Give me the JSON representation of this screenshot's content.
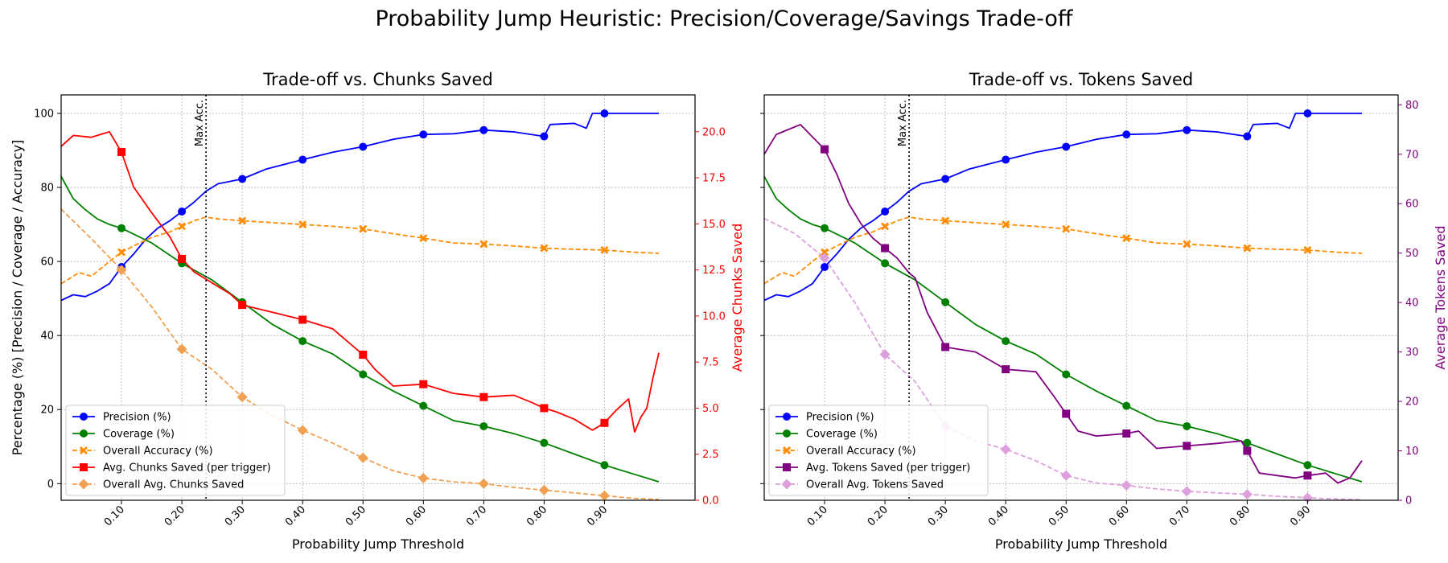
{
  "suptitle": "Probability Jump Heuristic: Precision/Coverage/Savings Trade-off",
  "colors": {
    "precision": "#0000ff",
    "coverage": "#008000",
    "accuracy": "#ff8c00",
    "chunks_saved": "#ff0000",
    "overall_chunks": "#f0a050",
    "tokens_saved": "#800080",
    "overall_tokens": "#dda0dd"
  },
  "chart_data": [
    {
      "type": "line",
      "title": "Trade-off vs. Chunks Saved",
      "xlabel": "Probability Jump Threshold",
      "ylabel": "Percentage (%) [Precision / Coverage / Accuracy]",
      "y2label": "Average Chunks Saved",
      "xlim": [
        0.0,
        1.05
      ],
      "ylim": [
        -4.5,
        105
      ],
      "y2lim": [
        0,
        22
      ],
      "xticks": [
        "0.10",
        "0.20",
        "0.30",
        "0.40",
        "0.50",
        "0.60",
        "0.70",
        "0.80",
        "0.90"
      ],
      "yticks": [
        "0",
        "20",
        "40",
        "60",
        "80",
        "100"
      ],
      "y2ticks": [
        "0.0",
        "2.5",
        "5.0",
        "7.5",
        "10.0",
        "12.5",
        "15.0",
        "17.5",
        "20.0"
      ],
      "grid": true,
      "legend_position": "lower-left",
      "vline": {
        "x": 0.24,
        "label": "Max Acc."
      },
      "series": [
        {
          "name": "Precision (%)",
          "axis": "left",
          "style": "solid",
          "marker": "circle",
          "color": "#0000ff",
          "x": [
            0.0,
            0.02,
            0.04,
            0.06,
            0.08,
            0.1,
            0.12,
            0.14,
            0.16,
            0.18,
            0.2,
            0.22,
            0.24,
            0.26,
            0.3,
            0.34,
            0.4,
            0.45,
            0.5,
            0.55,
            0.6,
            0.65,
            0.7,
            0.75,
            0.8,
            0.81,
            0.85,
            0.87,
            0.88,
            0.9,
            0.95,
            0.99
          ],
          "y": [
            49.5,
            51,
            50.5,
            52,
            54,
            58.5,
            62,
            66,
            69,
            71,
            73.5,
            76,
            79,
            81,
            82.3,
            85,
            87.5,
            89.5,
            91,
            93,
            94.3,
            94.5,
            95.5,
            95,
            93.8,
            97,
            97.3,
            96,
            100,
            100,
            100,
            100
          ]
        },
        {
          "name": "Coverage (%)",
          "axis": "left",
          "style": "solid",
          "marker": "circle",
          "color": "#008000",
          "x": [
            0.0,
            0.02,
            0.04,
            0.06,
            0.08,
            0.1,
            0.15,
            0.2,
            0.25,
            0.3,
            0.35,
            0.4,
            0.45,
            0.5,
            0.55,
            0.6,
            0.65,
            0.7,
            0.75,
            0.8,
            0.85,
            0.9,
            0.95,
            0.99
          ],
          "y": [
            83,
            77,
            74,
            71.5,
            70,
            69,
            65,
            59.5,
            55,
            49,
            43,
            38.5,
            35,
            29.5,
            25,
            21,
            17,
            15.5,
            13.5,
            11,
            8,
            5,
            2.5,
            0.5
          ]
        },
        {
          "name": "Overall Accuracy (%)",
          "axis": "left",
          "style": "dashed",
          "marker": "x",
          "color": "#ff8c00",
          "x": [
            0.0,
            0.03,
            0.05,
            0.08,
            0.1,
            0.13,
            0.15,
            0.18,
            0.2,
            0.22,
            0.24,
            0.26,
            0.3,
            0.35,
            0.4,
            0.45,
            0.5,
            0.55,
            0.6,
            0.65,
            0.7,
            0.75,
            0.8,
            0.85,
            0.9,
            0.95,
            0.99
          ],
          "y": [
            54,
            57,
            56,
            60,
            62.5,
            65,
            66.5,
            68,
            69.5,
            71,
            72,
            71.5,
            71,
            70.5,
            70,
            69.5,
            68.8,
            67.5,
            66.3,
            65,
            64.7,
            64.2,
            63.6,
            63.3,
            63.1,
            62.5,
            62.2
          ]
        },
        {
          "name": "Avg. Chunks Saved (per trigger)",
          "axis": "right",
          "style": "solid",
          "marker": "square",
          "color": "#ff0000",
          "x": [
            0.0,
            0.02,
            0.05,
            0.08,
            0.1,
            0.12,
            0.15,
            0.18,
            0.2,
            0.22,
            0.25,
            0.28,
            0.3,
            0.35,
            0.4,
            0.45,
            0.5,
            0.52,
            0.55,
            0.6,
            0.65,
            0.7,
            0.75,
            0.78,
            0.8,
            0.82,
            0.85,
            0.88,
            0.9,
            0.92,
            0.94,
            0.95,
            0.96,
            0.97,
            0.98,
            0.99
          ],
          "y": [
            19.2,
            19.8,
            19.7,
            20.0,
            18.9,
            17.0,
            15.6,
            14.3,
            13.1,
            12.4,
            11.8,
            11.2,
            10.6,
            10.2,
            9.8,
            9.3,
            7.9,
            7.1,
            6.2,
            6.3,
            5.8,
            5.6,
            5.7,
            5.3,
            5.0,
            4.8,
            4.4,
            3.8,
            4.2,
            4.9,
            5.5,
            3.7,
            4.5,
            5.0,
            6.6,
            8.0
          ]
        },
        {
          "name": "Overall Avg. Chunks Saved",
          "axis": "right",
          "style": "dashed",
          "marker": "diamond",
          "color": "#f0a050",
          "x": [
            0.0,
            0.05,
            0.1,
            0.15,
            0.2,
            0.25,
            0.3,
            0.35,
            0.4,
            0.45,
            0.5,
            0.55,
            0.6,
            0.65,
            0.7,
            0.75,
            0.8,
            0.85,
            0.9,
            0.95,
            0.99
          ],
          "y": [
            15.8,
            14.2,
            12.5,
            10.5,
            8.2,
            7.1,
            5.6,
            4.6,
            3.8,
            3.1,
            2.3,
            1.6,
            1.2,
            1.0,
            0.9,
            0.7,
            0.55,
            0.4,
            0.25,
            0.1,
            0.05
          ]
        }
      ]
    },
    {
      "type": "line",
      "title": "Trade-off vs. Tokens Saved",
      "xlabel": "Probability Jump Threshold",
      "ylabel": "",
      "y2label": "Average Tokens Saved",
      "xlim": [
        0.0,
        1.05
      ],
      "ylim": [
        -4.5,
        105
      ],
      "y2lim": [
        0,
        82
      ],
      "xticks": [
        "0.10",
        "0.20",
        "0.30",
        "0.40",
        "0.50",
        "0.60",
        "0.70",
        "0.80",
        "0.90"
      ],
      "yticks": [],
      "y2ticks": [
        "0",
        "10",
        "20",
        "30",
        "40",
        "50",
        "60",
        "70",
        "80"
      ],
      "grid": true,
      "legend_position": "lower-left",
      "vline": {
        "x": 0.24,
        "label": "Max Acc."
      },
      "series": [
        {
          "name": "Precision (%)",
          "axis": "left",
          "style": "solid",
          "marker": "circle",
          "color": "#0000ff",
          "x": [
            0.0,
            0.02,
            0.04,
            0.06,
            0.08,
            0.1,
            0.12,
            0.14,
            0.16,
            0.18,
            0.2,
            0.22,
            0.24,
            0.26,
            0.3,
            0.34,
            0.4,
            0.45,
            0.5,
            0.55,
            0.6,
            0.65,
            0.7,
            0.75,
            0.8,
            0.81,
            0.85,
            0.87,
            0.88,
            0.9,
            0.95,
            0.99
          ],
          "y": [
            49.5,
            51,
            50.5,
            52,
            54,
            58.5,
            62,
            66,
            69,
            71,
            73.5,
            76,
            79,
            81,
            82.3,
            85,
            87.5,
            89.5,
            91,
            93,
            94.3,
            94.5,
            95.5,
            95,
            93.8,
            97,
            97.3,
            96,
            100,
            100,
            100,
            100
          ]
        },
        {
          "name": "Coverage (%)",
          "axis": "left",
          "style": "solid",
          "marker": "circle",
          "color": "#008000",
          "x": [
            0.0,
            0.02,
            0.04,
            0.06,
            0.08,
            0.1,
            0.15,
            0.2,
            0.25,
            0.3,
            0.35,
            0.4,
            0.45,
            0.5,
            0.55,
            0.6,
            0.65,
            0.7,
            0.75,
            0.8,
            0.85,
            0.9,
            0.95,
            0.99
          ],
          "y": [
            83,
            77,
            74,
            71.5,
            70,
            69,
            65,
            59.5,
            55,
            49,
            43,
            38.5,
            35,
            29.5,
            25,
            21,
            17,
            15.5,
            13.5,
            11,
            8,
            5,
            2.5,
            0.5
          ]
        },
        {
          "name": "Overall Accuracy (%)",
          "axis": "left",
          "style": "dashed",
          "marker": "x",
          "color": "#ff8c00",
          "x": [
            0.0,
            0.03,
            0.05,
            0.08,
            0.1,
            0.13,
            0.15,
            0.18,
            0.2,
            0.22,
            0.24,
            0.26,
            0.3,
            0.35,
            0.4,
            0.45,
            0.5,
            0.55,
            0.6,
            0.65,
            0.7,
            0.75,
            0.8,
            0.85,
            0.9,
            0.95,
            0.99
          ],
          "y": [
            54,
            57,
            56,
            60,
            62.5,
            65,
            66.5,
            68,
            69.5,
            71,
            72,
            71.5,
            71,
            70.5,
            70,
            69.5,
            68.8,
            67.5,
            66.3,
            65,
            64.7,
            64.2,
            63.6,
            63.3,
            63.1,
            62.5,
            62.2
          ]
        },
        {
          "name": "Avg. Tokens Saved (per trigger)",
          "axis": "right",
          "style": "solid",
          "marker": "square",
          "color": "#800080",
          "x": [
            0.0,
            0.02,
            0.04,
            0.06,
            0.08,
            0.1,
            0.12,
            0.14,
            0.16,
            0.18,
            0.2,
            0.22,
            0.24,
            0.25,
            0.27,
            0.3,
            0.35,
            0.4,
            0.45,
            0.48,
            0.5,
            0.52,
            0.55,
            0.6,
            0.62,
            0.65,
            0.7,
            0.75,
            0.79,
            0.8,
            0.82,
            0.85,
            0.88,
            0.9,
            0.93,
            0.95,
            0.97,
            0.99
          ],
          "y": [
            70,
            74,
            75,
            76,
            73.5,
            71,
            66,
            60,
            56,
            53,
            51,
            49,
            46,
            45,
            38,
            31,
            30,
            26.5,
            26,
            21,
            17.5,
            14,
            13,
            13.5,
            14,
            10.5,
            11,
            11.5,
            12,
            10,
            5.5,
            5,
            4.5,
            5,
            5.5,
            3.5,
            4.5,
            8
          ]
        },
        {
          "name": "Overall Avg. Tokens Saved",
          "axis": "right",
          "style": "dashed",
          "marker": "diamond",
          "color": "#dda0dd",
          "x": [
            0.0,
            0.05,
            0.1,
            0.15,
            0.2,
            0.25,
            0.3,
            0.35,
            0.4,
            0.45,
            0.5,
            0.55,
            0.6,
            0.65,
            0.7,
            0.75,
            0.8,
            0.85,
            0.9,
            0.95,
            0.99
          ],
          "y": [
            57,
            54,
            49,
            40,
            29.5,
            24,
            15,
            12,
            10.3,
            8,
            5,
            3.5,
            3,
            2.3,
            1.8,
            1.5,
            1.2,
            0.8,
            0.5,
            0.25,
            0.1
          ]
        }
      ]
    }
  ]
}
